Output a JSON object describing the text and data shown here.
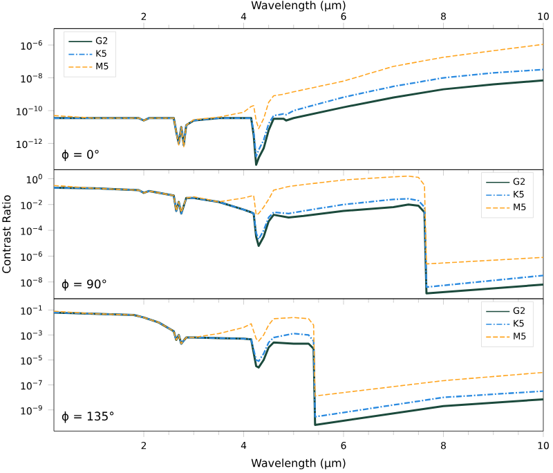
{
  "chart_data": [
    {
      "type": "line",
      "log": true,
      "legend": "top left",
      "tick_labels": "y",
      "xlim": [
        0.2,
        10
      ],
      "xticks": [
        2,
        4,
        6,
        8,
        10
      ],
      "x2lim": [
        0.2,
        10
      ],
      "x2ticks": [
        2,
        4,
        6,
        8,
        10
      ],
      "x2label": "Wavelength (µm)",
      "ylim": [
        2.5e-14,
        1e-05
      ],
      "yticks": [
        {
          "value": 1e-12,
          "label": "10$^{−12}$"
        },
        {
          "value": 1e-10,
          "label": "10$^{−10}$"
        },
        {
          "value": 1e-08,
          "label": "10$^{−8}$"
        },
        {
          "value": 1e-06,
          "label": "10$^{−6}$"
        }
      ],
      "annotations": [
        "ϕ = 0°"
      ],
      "x": [
        0.2,
        1.0,
        1.9,
        2.0,
        2.1,
        2.6,
        2.65,
        2.7,
        2.75,
        2.8,
        2.85,
        3.0,
        3.5,
        4.0,
        4.15,
        4.2,
        4.25,
        4.3,
        4.4,
        4.5,
        4.6,
        4.8,
        4.85,
        5.0,
        6,
        7,
        8,
        9,
        10
      ],
      "series": [
        {
          "name": "G2",
          "color": "#1b4a3c",
          "line_style": "solid",
          "values": [
            3.5e-11,
            3.5e-11,
            3.5e-11,
            2.5e-11,
            3.5e-11,
            3.5e-11,
            5e-12,
            1e-12,
            1e-11,
            8e-13,
            1.3e-11,
            2.5e-11,
            3.5e-11,
            3.5e-11,
            3.5e-11,
            3.2e-12,
            5e-14,
            1.3e-13,
            5e-13,
            6.3e-12,
            3.2e-11,
            3.2e-11,
            2.5e-11,
            3.5e-11,
            1.6e-10,
            6.3e-10,
            2e-09,
            4e-09,
            7e-09
          ]
        },
        {
          "name": "K5",
          "color": "#2a8ae0",
          "line_style": "dashdot",
          "values": [
            3.5e-11,
            3.5e-11,
            3.5e-11,
            2.5e-11,
            3.5e-11,
            3.5e-11,
            5e-12,
            1e-12,
            1e-11,
            8e-13,
            1.3e-11,
            2.5e-11,
            3.5e-11,
            3.5e-11,
            3.5e-11,
            5e-12,
            1.6e-13,
            4e-13,
            1.6e-12,
            1.6e-11,
            5e-11,
            6.3e-11,
            5.6e-11,
            1e-10,
            6.6e-10,
            3e-09,
            1e-08,
            2e-08,
            3.2e-08
          ]
        },
        {
          "name": "M5",
          "color": "#ffa520",
          "line_style": "dashed",
          "values": [
            5e-11,
            3.5e-11,
            3.5e-11,
            2.5e-11,
            3.5e-11,
            3.5e-11,
            5e-12,
            8e-13,
            1e-11,
            6.3e-13,
            1.3e-11,
            2.8e-11,
            4e-11,
            8e-11,
            1.8e-10,
            2e-10,
            2.5e-11,
            8e-12,
            3.2e-11,
            3.2e-10,
            8e-10,
            1e-09,
            1.1e-09,
            1.4e-09,
            6.3e-09,
            5e-08,
            1.8e-07,
            4.5e-07,
            1.1e-06
          ]
        }
      ]
    },
    {
      "type": "line",
      "log": true,
      "legend": "top right",
      "tick_labels": "y",
      "xlim": [
        0.2,
        10
      ],
      "xticks": [
        2,
        4,
        6,
        8,
        10
      ],
      "ylim": [
        5e-10,
        5
      ],
      "ylabel": "Contrast Ratio",
      "yticks": [
        {
          "value": 1e-08,
          "label": "10$^{−8}$"
        },
        {
          "value": 1e-06,
          "label": "10$^{−6}$"
        },
        {
          "value": 0.0001,
          "label": "10$^{−4}$"
        },
        {
          "value": 0.01,
          "label": "10$^{−2}$"
        },
        {
          "value": 1,
          "label": "10$^{0}$"
        }
      ],
      "annotations": [
        "ϕ = 90°"
      ],
      "x": [
        0.2,
        1.0,
        1.9,
        2.0,
        2.1,
        2.6,
        2.65,
        2.7,
        2.75,
        2.85,
        3.0,
        3.5,
        4.0,
        4.15,
        4.2,
        4.25,
        4.3,
        4.4,
        4.5,
        4.6,
        4.9,
        5.2,
        6,
        7,
        7.3,
        7.5,
        7.62,
        7.66,
        10
      ],
      "series": [
        {
          "name": "G2",
          "color": "#1b4a3c",
          "line_style": "solid",
          "values": [
            0.2,
            0.18,
            0.13,
            0.08,
            0.11,
            0.05,
            0.0032,
            0.016,
            0.002,
            0.032,
            0.032,
            0.016,
            0.004,
            0.0025,
            0.002,
            3.2e-05,
            6.3e-06,
            3.2e-05,
            0.0005,
            0.0016,
            0.001,
            0.0013,
            0.0032,
            0.0063,
            0.01,
            0.008,
            0.0025,
            1.3e-09,
            6.3e-09
          ]
        },
        {
          "name": "K5",
          "color": "#2a8ae0",
          "line_style": "dashdot",
          "values": [
            0.2,
            0.18,
            0.13,
            0.08,
            0.11,
            0.05,
            0.0032,
            0.016,
            0.002,
            0.032,
            0.032,
            0.016,
            0.004,
            0.0025,
            0.002,
            6.3e-05,
            2e-05,
            0.0001,
            0.001,
            0.0025,
            0.002,
            0.0032,
            0.01,
            0.025,
            0.028,
            0.02,
            0.0063,
            4e-09,
            3.2e-08
          ]
        },
        {
          "name": "M5",
          "color": "#ffa520",
          "line_style": "dashed",
          "values": [
            0.3,
            0.18,
            0.13,
            0.08,
            0.11,
            0.05,
            0.0032,
            0.016,
            0.0025,
            0.032,
            0.04,
            0.016,
            0.032,
            0.045,
            0.05,
            0.0016,
            0.002,
            0.0063,
            0.025,
            0.13,
            0.25,
            0.35,
            0.8,
            1.4,
            1.6,
            1.26,
            0.32,
            2.5e-07,
            8e-07
          ]
        }
      ]
    },
    {
      "type": "line",
      "log": true,
      "legend": "top right",
      "xlim": [
        0.2,
        10
      ],
      "xticks": [
        2,
        4,
        6,
        8,
        10
      ],
      "xlabel": "Wavelength (µm)",
      "ylim": [
        2e-11,
        0.8
      ],
      "yticks": [
        {
          "value": 1e-09,
          "label": "10$^{−9}$"
        },
        {
          "value": 1e-07,
          "label": "10$^{−7}$"
        },
        {
          "value": 1e-05,
          "label": "10$^{−5}$"
        },
        {
          "value": 0.001,
          "label": "10$^{−3}$"
        },
        {
          "value": 0.1,
          "label": "10$^{−1}$"
        }
      ],
      "annotations": [
        "ϕ = 135°"
      ],
      "x": [
        0.2,
        1.0,
        1.8,
        2.0,
        2.3,
        2.6,
        2.65,
        2.7,
        2.75,
        2.85,
        3.0,
        3.5,
        4.0,
        4.15,
        4.25,
        4.3,
        4.4,
        4.5,
        4.6,
        5.0,
        5.3,
        5.4,
        5.43,
        8,
        10
      ],
      "series": [
        {
          "name": "G2",
          "color": "#1b4a3c",
          "line_style": "solid",
          "values": [
            0.063,
            0.05,
            0.04,
            0.025,
            0.01,
            0.002,
            0.0004,
            0.001,
            0.0002,
            0.00063,
            0.00063,
            0.00056,
            0.0005,
            0.00045,
            3.2e-06,
            2.5e-06,
            1e-05,
            0.0001,
            0.00025,
            0.0002,
            0.0002,
            8e-05,
            6.3e-11,
            2e-09,
            7e-09
          ]
        },
        {
          "name": "K5",
          "color": "#2a8ae0",
          "line_style": "dashdot",
          "values": [
            0.063,
            0.05,
            0.04,
            0.025,
            0.01,
            0.002,
            0.0004,
            0.001,
            0.0002,
            0.00063,
            0.00063,
            0.00056,
            0.0005,
            0.00045,
            1e-05,
            8e-06,
            3.2e-05,
            0.00025,
            0.00063,
            0.0013,
            0.001,
            0.00032,
            2.8e-10,
            1e-08,
            3.2e-08
          ]
        },
        {
          "name": "M5",
          "color": "#ffa520",
          "line_style": "dashed",
          "values": [
            0.08,
            0.05,
            0.04,
            0.025,
            0.01,
            0.002,
            0.0004,
            0.001,
            0.0002,
            0.00063,
            0.00063,
            0.0013,
            0.004,
            0.008,
            0.0005,
            0.00032,
            0.001,
            0.0063,
            0.02,
            0.025,
            0.02,
            0.0063,
            1.3e-08,
            2.2e-07,
            1e-06
          ]
        }
      ]
    }
  ]
}
